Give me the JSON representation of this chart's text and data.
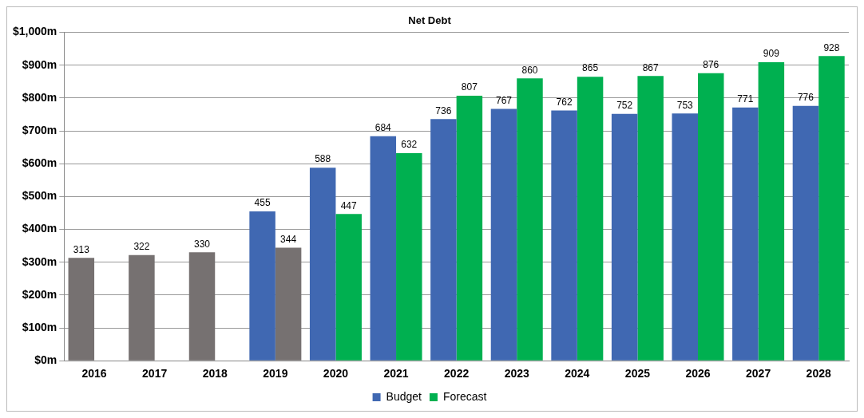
{
  "chart_data": {
    "type": "bar",
    "title": "Net Debt",
    "categories": [
      "2016",
      "2017",
      "2018",
      "2019",
      "2020",
      "2021",
      "2022",
      "2023",
      "2024",
      "2025",
      "2026",
      "2027",
      "2028"
    ],
    "series": [
      {
        "name": "Budget",
        "color": "#4068b2",
        "values": [
          313,
          322,
          330,
          455,
          588,
          684,
          736,
          767,
          762,
          752,
          753,
          771,
          776
        ],
        "colors": [
          "#767171",
          "#767171",
          "#767171",
          "#4068b2",
          "#4068b2",
          "#4068b2",
          "#4068b2",
          "#4068b2",
          "#4068b2",
          "#4068b2",
          "#4068b2",
          "#4068b2",
          "#4068b2"
        ]
      },
      {
        "name": "Forecast",
        "color": "#00b050",
        "values": [
          null,
          null,
          null,
          344,
          447,
          632,
          807,
          860,
          865,
          867,
          876,
          909,
          928
        ],
        "colors": [
          null,
          null,
          null,
          "#767171",
          "#00b050",
          "#00b050",
          "#00b050",
          "#00b050",
          "#00b050",
          "#00b050",
          "#00b050",
          "#00b050",
          "#00b050"
        ]
      }
    ],
    "ylim": [
      0,
      1000
    ],
    "yticks": [
      {
        "value": 0,
        "label": "$0m"
      },
      {
        "value": 100,
        "label": "$100m"
      },
      {
        "value": 200,
        "label": "$200m"
      },
      {
        "value": 300,
        "label": "$300m"
      },
      {
        "value": 400,
        "label": "$400m"
      },
      {
        "value": 500,
        "label": "$500m"
      },
      {
        "value": 600,
        "label": "$600m"
      },
      {
        "value": 700,
        "label": "$700m"
      },
      {
        "value": 800,
        "label": "$800m"
      },
      {
        "value": 900,
        "label": "$900m"
      },
      {
        "value": 1000,
        "label": "$1,000m"
      }
    ],
    "grid": "y",
    "legend": "bottom",
    "data_labels": true
  }
}
